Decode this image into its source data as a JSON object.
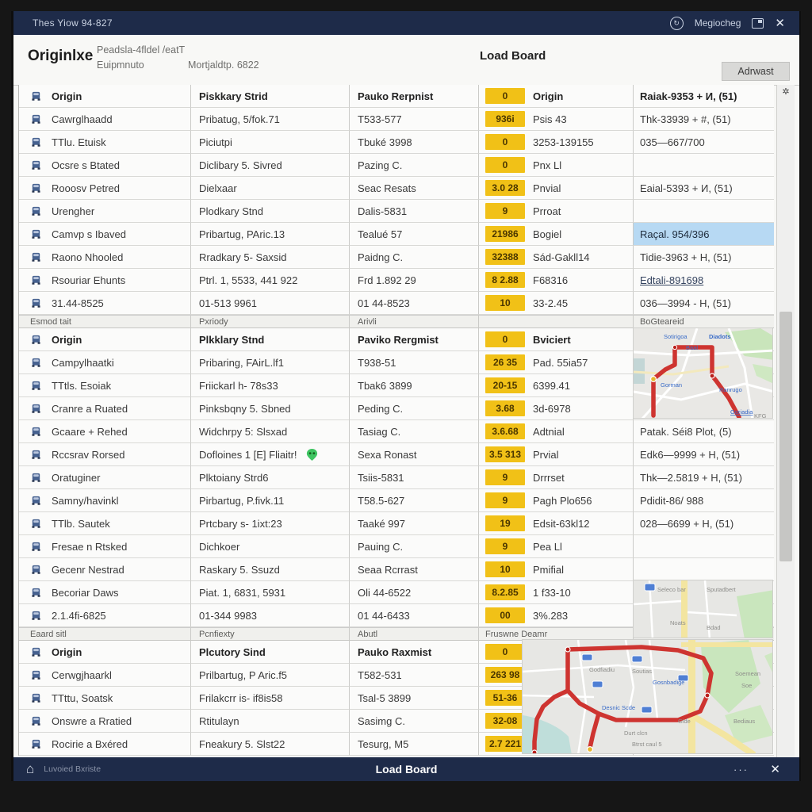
{
  "colors": {
    "titlebar_bg": "#1e2b49",
    "badge_bg": "#f1c117",
    "selection_bg": "#b7d9f3",
    "route_red": "#ce3430",
    "pin_green": "#3ec461",
    "truck_blue": "#46618f"
  },
  "titlebar": {
    "title": "Thes Yiow 94-827",
    "status": "Megiocheg"
  },
  "icons": {
    "refresh": "↻",
    "close": "✕",
    "home": "⌂",
    "ellipsis": "···",
    "scroll_star": "✲"
  },
  "header": {
    "app_name": "Originlxe",
    "subtitle_line1": "Peadsla-4fldel /eatT",
    "subtitle_line2a": "Euipmnuto",
    "subtitle_line2b": "Mortjaldtp. 6822",
    "page_title": "Load Board",
    "action_button": "Adrwast"
  },
  "table": {
    "rows": [
      {
        "type": "data",
        "lead": true,
        "origin": "Origin",
        "street": "Piskkary Strid",
        "dest": "Pauko Rerpnist",
        "badge": "0",
        "label": "Origin",
        "info": "Raiak-9353 + И, (51)"
      },
      {
        "type": "data",
        "origin": "Cawrglhaadd",
        "street": "Pribatug, 5/fok.71",
        "dest": "T533-577",
        "badge": "936i",
        "label": "Psis 43",
        "info": "Thk-33939 + #, (51)"
      },
      {
        "type": "data",
        "origin": "TTlu. Etuisk",
        "street": "Piciutpi",
        "dest": "Tbuké 3998",
        "badge": "0",
        "label": "3253-139155",
        "info": "035—667/700"
      },
      {
        "type": "data",
        "origin": "Ocsre s Btated",
        "street": "Diclibary 5. Sivred",
        "dest": "Pazing C.",
        "badge": "0",
        "label": "Pnx Ll",
        "info": ""
      },
      {
        "type": "data",
        "origin": "Rooosv Petred",
        "street": "Dielxaar",
        "dest": "Seac Resats",
        "badge": "3.0 28",
        "label": "Pnvial",
        "info": "Eaial-5393 + И, (51)"
      },
      {
        "type": "data",
        "origin": "Urengher",
        "street": "Plodkary Stnd",
        "dest": "Dalis-5831",
        "badge": "9",
        "label": "Prroat",
        "info": ""
      },
      {
        "type": "data",
        "origin": "Camvp s Ibaved",
        "street": "Pribartug, PAric.13",
        "dest": "Tealué 57",
        "badge": "21986",
        "label": "Bogiel",
        "info": "Raçal. 954/396",
        "sel": true
      },
      {
        "type": "data",
        "origin": "Raono Nhooled",
        "street": "Rradkary 5- Saxsid",
        "dest": "Paidng C.",
        "badge": "32388",
        "label": "Sád-Gakll14",
        "info": "Tidie-3963 + H, (51)"
      },
      {
        "type": "data",
        "origin": "Rsouriar Ehunts",
        "street": "Ptrl. 1, 5533, 441 922",
        "dest": "Frd 1.892 29",
        "badge": "8 2.88",
        "label": "F68316",
        "info": "Edtali-891698",
        "link": true
      },
      {
        "type": "data",
        "origin": "31.44-8525",
        "street": "01-513 9961",
        "dest": "01 44-8523",
        "badge": "10",
        "label": "33-2.45",
        "info": "036—3994 - H, (51)"
      },
      {
        "type": "sec",
        "cells": [
          "Esmod tait",
          "Pxriody",
          "Arivli",
          "",
          "BoGteareid"
        ]
      },
      {
        "type": "data",
        "lead": true,
        "origin": "Origin",
        "street": "Plkklary Stnd",
        "dest": "Paviko Rergmist",
        "badge": "0",
        "label": "Bviciert",
        "info": ""
      },
      {
        "type": "data",
        "origin": "Campylhaatki",
        "street": "Pribaring, FAirL.lf1",
        "dest": "T938-51",
        "badge": "26 35",
        "label": "Pad. 55ia57",
        "info": ""
      },
      {
        "type": "data",
        "origin": "TTtls. Esoiak",
        "street": "Friickarl h- 78s33",
        "dest": "Tbak6 3899",
        "badge": "20-15",
        "label": "6399.41",
        "info": ""
      },
      {
        "type": "data",
        "origin": "Cranre a Ruated",
        "street": "Pinksbqny 5. Sbned",
        "dest": "Peding C.",
        "badge": "3.68",
        "label": "3d-6978",
        "info": ""
      },
      {
        "type": "data",
        "origin": "Gcaare + Rehed",
        "street": "Widchrpy 5: Slsxad",
        "dest": "Tasiag C.",
        "badge": "3.6.68",
        "label": "Adtnial",
        "info": "Patak. Séi8 Plot, (5)"
      },
      {
        "type": "data",
        "origin": "Rccsrav Rorsed",
        "street": "Dofloines 1 [E] Fliaitr!",
        "dest": "Sexa Ronast",
        "badge": "3.5 313",
        "label": "Prvial",
        "info": "Edk6—9999 + H, (51)",
        "pin": true
      },
      {
        "type": "data",
        "origin": "Oratuginer",
        "street": "Plktoiany Strd6",
        "dest": "Tsiis-5831",
        "badge": "9",
        "label": "Drrrset",
        "info": "Thk—2.5819 + H, (51)"
      },
      {
        "type": "data",
        "origin": "Samny/havinkl",
        "street": "Pirbartug, P.fivk.11",
        "dest": "T58.5-627",
        "badge": "9",
        "label": "Pagh Plo656",
        "info": "Pdidit-86/ 988"
      },
      {
        "type": "data",
        "origin": "TTlb. Sautek",
        "street": "Prtcbary s- 1ixt:23",
        "dest": "Taaké 997",
        "badge": "19",
        "label": "Edsit-63kl12",
        "info": "028—6699 + H, (51)"
      },
      {
        "type": "data",
        "origin": "Fresae n Rtsked",
        "street": "Dichkoer",
        "dest": "Pauing C.",
        "badge": "9",
        "label": "Pea Ll",
        "info": ""
      },
      {
        "type": "data",
        "origin": "Gecenr Nestrad",
        "street": "Raskary 5. Ssuzd",
        "dest": "Seaa Rcrrast",
        "badge": "10",
        "label": "Pmifial",
        "info": ""
      },
      {
        "type": "data",
        "origin": "Becoriar Daws",
        "street": "Piat. 1, 6831, 5931",
        "dest": "Oli 44-6522",
        "badge": "8.2.85",
        "label": "1 f33-10",
        "info": ""
      },
      {
        "type": "data",
        "origin": "2.1.4fi-6825",
        "street": "01-344 9983",
        "dest": "01 44-6433",
        "badge": "00",
        "label": "3%.283",
        "info": ""
      },
      {
        "type": "sec",
        "cells": [
          "Eaard sitl",
          "Pcnfiexty",
          "Abutl",
          "Fruswne Deamr",
          ""
        ]
      },
      {
        "type": "data",
        "lead": true,
        "origin": "Origin",
        "street": "Plcutory Sind",
        "dest": "Pauko Raxmist",
        "badge": "0",
        "label": "",
        "info": ""
      },
      {
        "type": "data",
        "origin": "Cerwgjhaarkl",
        "street": "Prilbartug, P Aric.f5",
        "dest": "T582-531",
        "badge": "263 98",
        "label": "",
        "info": ""
      },
      {
        "type": "data",
        "origin": "TTttu, Soatsk",
        "street": "Frilakcrr is- if8is58",
        "dest": "Tsal-5 3899",
        "badge": "51-36",
        "label": "",
        "info": ""
      },
      {
        "type": "data",
        "origin": "Onswre a Rratied",
        "street": "Rtitulayn",
        "dest": "Sasimg C.",
        "badge": "32-08",
        "label": "",
        "info": ""
      },
      {
        "type": "data",
        "origin": "Rocirie a Bxéred",
        "street": "Fneakury 5. Slst22",
        "dest": "Tesurg, M5",
        "badge": "2.7 221",
        "label": "",
        "info": ""
      }
    ]
  },
  "maps": {
    "map1": [
      "Sotirigoa",
      "Diadots",
      "Baal",
      "Gorman",
      "Ranrugo",
      "Goriadia",
      "KFG"
    ],
    "map2a": [
      "Seleco bar",
      "Sputadbert",
      "Noats",
      "Bdad"
    ],
    "map2b": [
      "Godfiadiu",
      "Soutias",
      "Gosnbadige",
      "Desnic Scde",
      "Glde",
      "Soemean",
      "Soe",
      "Bediaus",
      "Durt clcn",
      "Btrst caul 5"
    ]
  },
  "footer": {
    "left_label": "Luvoied Bxriste",
    "title": "Load Board"
  }
}
